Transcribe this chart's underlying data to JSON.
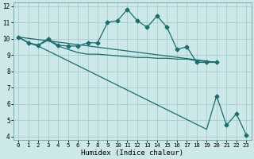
{
  "xlabel": "Humidex (Indice chaleur)",
  "bg_color": "#cce8e8",
  "grid_color": "#aacccc",
  "line_color": "#1a6e6e",
  "xlim": [
    -0.5,
    23.5
  ],
  "ylim": [
    3.8,
    12.2
  ],
  "xticks": [
    0,
    1,
    2,
    3,
    4,
    5,
    6,
    7,
    8,
    9,
    10,
    11,
    12,
    13,
    14,
    15,
    16,
    17,
    18,
    19,
    20,
    21,
    22,
    23
  ],
  "yticks": [
    4,
    5,
    6,
    7,
    8,
    9,
    10,
    11,
    12
  ],
  "line1_x": [
    0,
    1,
    2,
    3,
    4,
    5,
    6,
    7,
    8,
    9,
    10,
    11,
    12,
    13,
    14,
    15,
    16,
    17,
    18,
    19,
    20
  ],
  "line1_y": [
    10.1,
    9.75,
    9.6,
    10.0,
    9.6,
    9.55,
    9.55,
    9.75,
    9.75,
    11.0,
    11.1,
    11.8,
    11.1,
    10.7,
    11.4,
    10.7,
    9.35,
    9.5,
    8.55,
    8.55,
    8.55
  ],
  "line2_x": [
    0,
    1,
    2,
    3,
    4,
    5,
    6,
    7,
    8,
    9,
    10,
    11,
    12,
    13,
    14,
    15,
    16,
    17,
    18,
    19,
    20
  ],
  "line2_y": [
    10.1,
    9.75,
    9.6,
    9.9,
    9.55,
    9.35,
    9.15,
    9.05,
    9.05,
    9.0,
    8.95,
    8.9,
    8.85,
    8.85,
    8.8,
    8.8,
    8.75,
    8.75,
    8.65,
    8.6,
    8.55
  ],
  "line3_x": [
    0,
    20
  ],
  "line3_y": [
    10.1,
    8.55
  ],
  "line4_x": [
    0,
    1,
    2,
    3,
    4,
    5,
    6,
    7,
    8,
    9,
    10,
    11,
    12,
    13,
    14,
    15,
    16,
    17,
    18,
    19,
    20,
    21,
    22,
    23
  ],
  "line4_y": [
    10.1,
    9.75,
    9.55,
    9.25,
    8.95,
    8.65,
    8.35,
    8.05,
    7.75,
    7.45,
    7.15,
    6.85,
    6.55,
    6.25,
    5.95,
    5.65,
    5.35,
    5.05,
    4.75,
    4.45,
    6.5,
    4.7,
    5.4,
    4.1
  ],
  "line4_marker_start": 20,
  "marker_size": 2.5,
  "lw": 0.9
}
